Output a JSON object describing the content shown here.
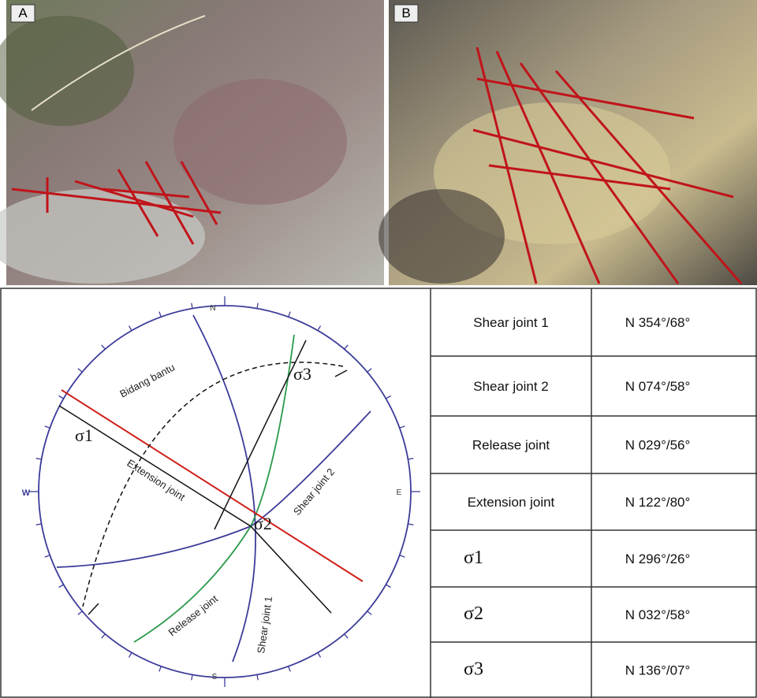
{
  "panels": [
    {
      "label": "A"
    },
    {
      "label": "B"
    }
  ],
  "stereonet": {
    "directions": {
      "north": "N",
      "east": "E",
      "south": "S",
      "west": "W"
    },
    "labels": {
      "bidang_bantu": "Bidang bantu",
      "sigma1": "σ1",
      "sigma2": "σ2",
      "sigma3": "σ3",
      "extension_joint": "Extension joint",
      "shear_joint_1": "Shear joint 1",
      "shear_joint_2": "Shear joint 2",
      "release_joint": "Release joint"
    }
  },
  "table": {
    "rows": [
      [
        "Shear joint 1",
        "N 354°/68°"
      ],
      [
        "Shear joint 2",
        "N 074°/58°"
      ],
      [
        "Release joint",
        "N 029°/56°"
      ],
      [
        "Extension joint",
        "N 122°/80°"
      ],
      [
        "σ1",
        "N 296°/26°"
      ],
      [
        "σ2",
        "N 032°/58°"
      ],
      [
        "σ3",
        "N 136°/07°"
      ]
    ]
  }
}
